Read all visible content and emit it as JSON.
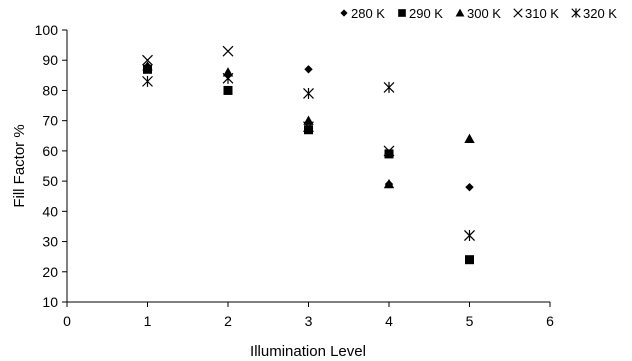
{
  "chart_data": {
    "type": "scatter",
    "title": "",
    "xlabel": "Illumination Level",
    "ylabel": "Fill Factor %",
    "xlim": [
      0,
      6
    ],
    "ylim": [
      10,
      100
    ],
    "xticks": [
      0,
      1,
      2,
      3,
      4,
      5,
      6
    ],
    "yticks": [
      10,
      20,
      30,
      40,
      50,
      60,
      70,
      80,
      90,
      100
    ],
    "grid": false,
    "legend_position": "top-right",
    "series": [
      {
        "name": "280 K",
        "marker": "diamond",
        "x": [
          1,
          2,
          3,
          4,
          5
        ],
        "y": [
          88,
          85,
          87,
          49,
          48
        ]
      },
      {
        "name": "290 K",
        "marker": "square",
        "x": [
          1,
          2,
          3,
          4,
          5
        ],
        "y": [
          87,
          80,
          67,
          59,
          24
        ]
      },
      {
        "name": "300 K",
        "marker": "triangle",
        "x": [
          1,
          2,
          3,
          4,
          5
        ],
        "y": [
          88,
          86,
          70,
          49,
          64
        ]
      },
      {
        "name": "310 K",
        "marker": "x",
        "x": [
          1,
          2,
          3,
          4,
          5
        ],
        "y": [
          90,
          93,
          68,
          60,
          32
        ]
      },
      {
        "name": "320 K",
        "marker": "asterisk",
        "x": [
          1,
          2,
          3,
          4,
          5
        ],
        "y": [
          83,
          84,
          79,
          81,
          32
        ]
      }
    ]
  }
}
